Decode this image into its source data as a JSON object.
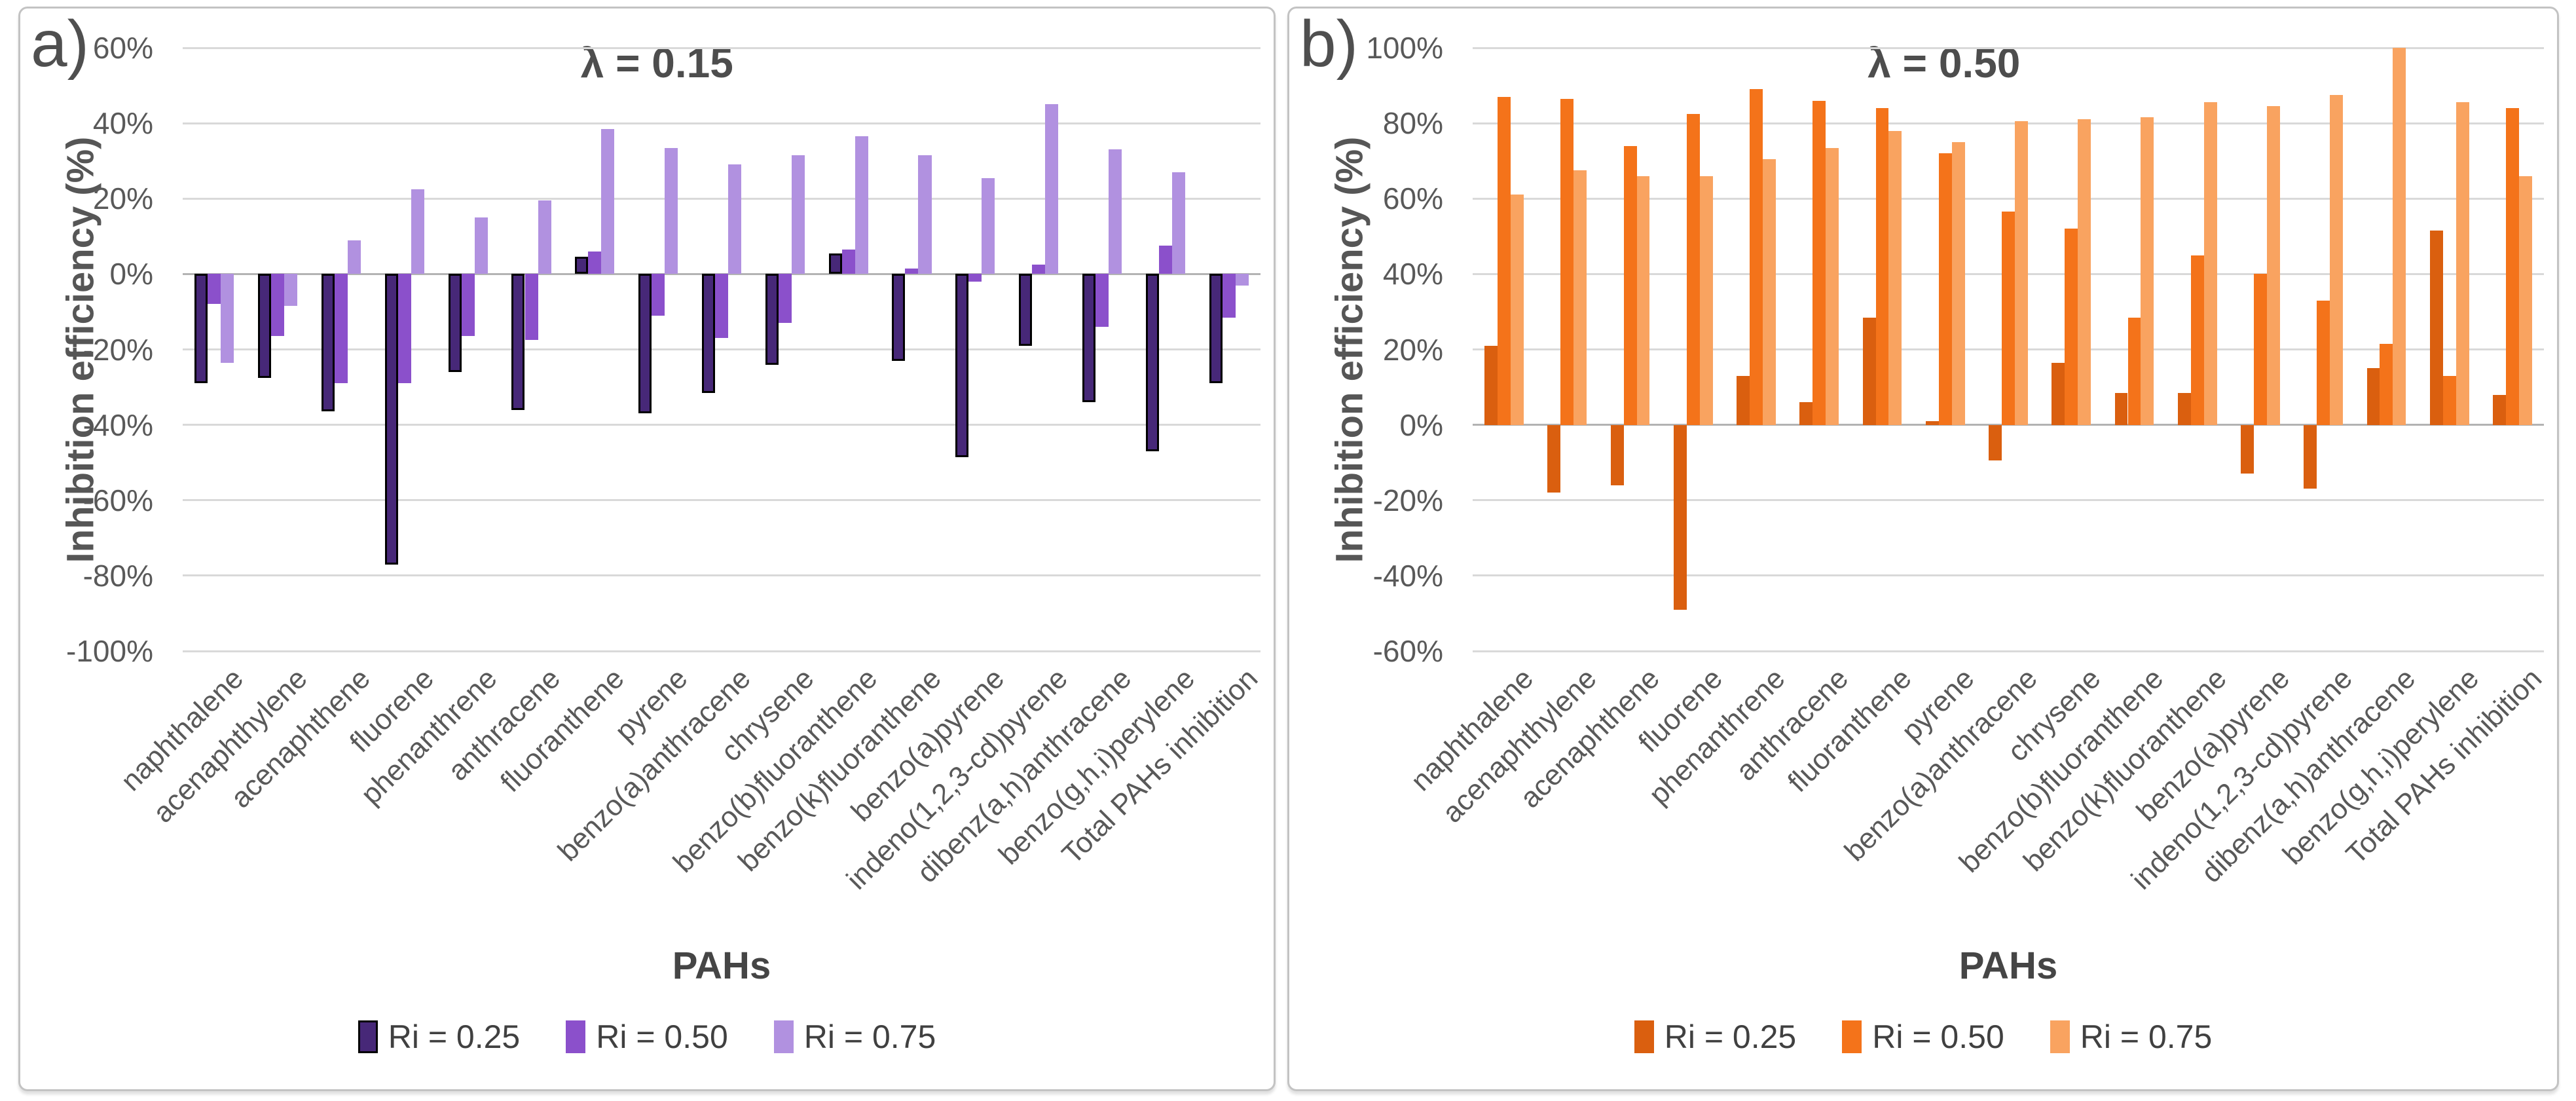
{
  "figure": {
    "panel_a_label": "a)",
    "panel_b_label": "b)"
  },
  "chart_data": [
    {
      "type": "bar",
      "panel_label": "a)",
      "title": "λ = 0.15",
      "ylabel": "Inhibition efficiency (%)",
      "xlabel": "PAHs",
      "ylim": [
        -100,
        60
      ],
      "ytick_values": [
        60,
        40,
        20,
        0,
        -20,
        -40,
        -60,
        -80,
        -100
      ],
      "ytick_labels": [
        "60%",
        "40%",
        "20%",
        "0%",
        "-20%",
        "-40%",
        "-60%",
        "-80%",
        "-100%"
      ],
      "grid": true,
      "grid_color": "#d9d9d9",
      "zero_line_color": "#b3b3b3",
      "legend_position": "bottom",
      "categories": [
        "naphthalene",
        "acenaphthylene",
        "acenaphthene",
        "fluorene",
        "phenanthrene",
        "anthracene",
        "fluoranthene",
        "pyrene",
        "benzo(a)anthracene",
        "chrysene",
        "benzo(b)fluoranthene",
        "benzo(k)fluoranthene",
        "benzo(a)pyrene",
        "indeno(1,2,3-cd)pyrene",
        "dibenz(a,h)anthracene",
        "benzo(g,h,i)perylene",
        "Total PAHs inhibition"
      ],
      "series": [
        {
          "name": "Ri = 0.25",
          "color": "#472878",
          "outline": "#000000",
          "values": [
            -29,
            -27.5,
            -36.5,
            -77,
            -26,
            -36,
            4.5,
            -37,
            -31.5,
            -24,
            5.5,
            -23,
            -48.5,
            -19,
            -34,
            -47,
            -29
          ]
        },
        {
          "name": "Ri = 0.50",
          "color": "#8b50cb",
          "values": [
            -8,
            -16.5,
            -29,
            -29,
            -16.5,
            -17.5,
            6,
            -11,
            -17,
            -13,
            6.5,
            1.5,
            -2,
            2.5,
            -14,
            7.5,
            -11.5
          ]
        },
        {
          "name": "Ri = 0.75",
          "color": "#b191e0",
          "values": [
            -23.5,
            -8.5,
            9,
            22.5,
            15,
            19.5,
            38.5,
            33.5,
            29,
            31.5,
            36.5,
            31.5,
            25.5,
            45,
            33,
            27,
            -3
          ]
        }
      ]
    },
    {
      "type": "bar",
      "panel_label": "b)",
      "title": "λ = 0.50",
      "ylabel": "Inhibition efficiency (%)",
      "xlabel": "PAHs",
      "ylim": [
        -60,
        100
      ],
      "ytick_values": [
        100,
        80,
        60,
        40,
        20,
        0,
        -20,
        -40,
        -60
      ],
      "ytick_labels": [
        "100%",
        "80%",
        "60%",
        "40%",
        "20%",
        "0%",
        "-20%",
        "-40%",
        "-60%"
      ],
      "grid": true,
      "grid_color": "#d9d9d9",
      "zero_line_color": "#b3b3b3",
      "legend_position": "bottom",
      "categories": [
        "naphthalene",
        "acenaphthylene",
        "acenaphthene",
        "fluorene",
        "phenanthrene",
        "anthracene",
        "fluoranthene",
        "pyrene",
        "benzo(a)anthracene",
        "chrysene",
        "benzo(b)fluoranthene",
        "benzo(k)fluoranthene",
        "benzo(a)pyrene",
        "indeno(1,2,3-cd)pyrene",
        "dibenz(a,h)anthracene",
        "benzo(g,h,i)perylene",
        "Total PAHs inhibition"
      ],
      "series": [
        {
          "name": "Ri = 0.25",
          "color": "#da5f0f",
          "values": [
            21,
            -18,
            -16,
            -49,
            13,
            6,
            28.5,
            1,
            -9.5,
            16.5,
            8.5,
            8.5,
            -13,
            -17,
            15,
            51.5,
            8
          ]
        },
        {
          "name": "Ri = 0.50",
          "color": "#f4731a",
          "values": [
            87,
            86.5,
            74,
            82.5,
            89,
            86,
            84,
            72,
            56.5,
            52,
            28.5,
            45,
            40,
            33,
            21.5,
            13,
            84
          ]
        },
        {
          "name": "Ri = 0.75",
          "color": "#f9a360",
          "values": [
            61,
            67.5,
            66,
            66,
            70.5,
            73.5,
            78,
            75,
            80.5,
            81,
            81.5,
            85.5,
            84.5,
            87.5,
            100,
            85.5,
            66
          ]
        }
      ]
    }
  ]
}
